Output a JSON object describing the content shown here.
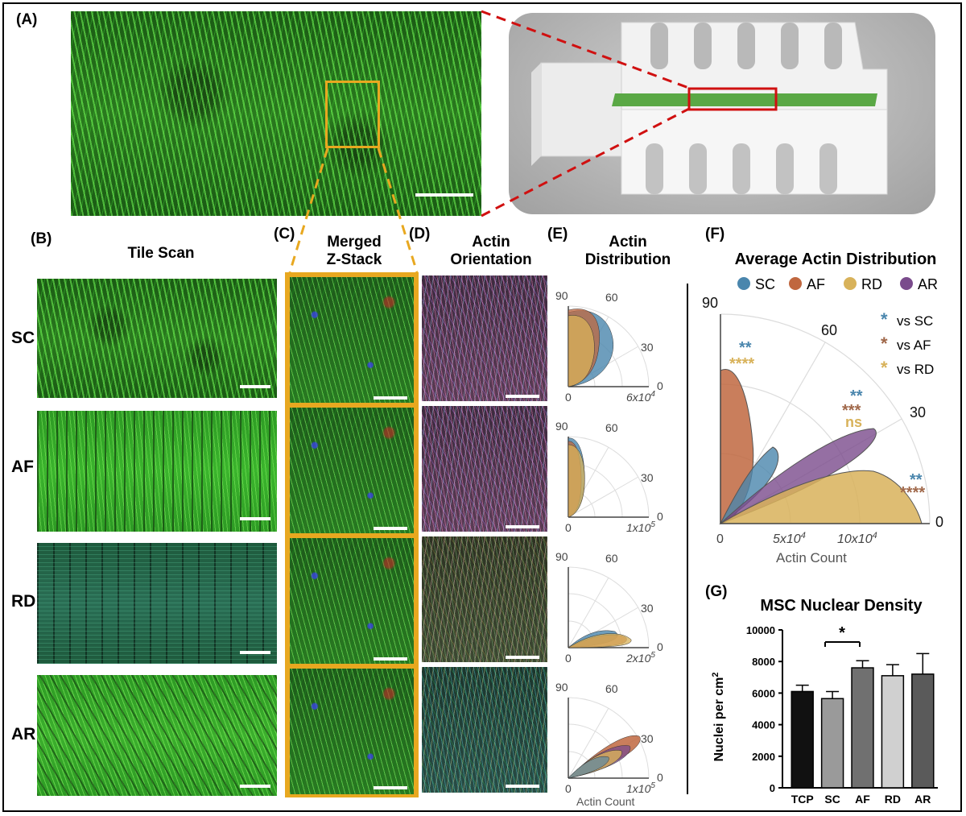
{
  "panels": {
    "a": "(A)",
    "b": "(B)",
    "c": "(C)",
    "d": "(D)",
    "e": "(E)",
    "f": "(F)",
    "g": "(G)"
  },
  "headings": {
    "tile_scan": "Tile Scan",
    "merged_1": "Merged",
    "merged_2": "Z-Stack",
    "orient_1": "Actin",
    "orient_2": "Orientation",
    "dist_1": "Actin",
    "dist_2": "Distribution"
  },
  "rows": [
    "SC",
    "AF",
    "RD",
    "AR"
  ],
  "colors": {
    "SC": "#4a86ad",
    "AF": "#c0673f",
    "RD": "#d8b25a",
    "AR": "#7a4b8c",
    "highlight_box": "#e8a820",
    "zoom_line": "#e8a820",
    "device_box": "#d01010"
  },
  "small_polars": [
    {
      "angle_labels": [
        "90",
        "60",
        "30",
        "0"
      ],
      "r_min": "0",
      "r_max": "6x10",
      "r_max_exp": "4"
    },
    {
      "angle_labels": [
        "90",
        "60",
        "30",
        "0"
      ],
      "r_min": "0",
      "r_max": "1x10",
      "r_max_exp": "5"
    },
    {
      "angle_labels": [
        "90",
        "60",
        "30",
        "0"
      ],
      "r_min": "0",
      "r_max": "2x10",
      "r_max_exp": "5"
    },
    {
      "angle_labels": [
        "90",
        "60",
        "30",
        "0"
      ],
      "r_min": "0",
      "r_max": "1x10",
      "r_max_exp": "5"
    }
  ],
  "small_polar_xlabel": "Actin Count",
  "avg_polar": {
    "title": "Average Actin Distribution",
    "legend": [
      "SC",
      "AF",
      "RD",
      "AR"
    ],
    "angle_labels": [
      "90",
      "60",
      "30",
      "0"
    ],
    "r_labels": [
      "0",
      "5x10",
      "10x10"
    ],
    "r_label_exp": "4",
    "xlabel": "Actin Count",
    "sig_legend": [
      {
        "symbol": "*",
        "text": "vs SC",
        "color": "#4a86ad"
      },
      {
        "symbol": "*",
        "text": "vs AF",
        "color": "#a0684a"
      },
      {
        "symbol": "*",
        "text": "vs RD",
        "color": "#d8b25a"
      }
    ],
    "annotations": {
      "af_sc": "**",
      "af_rd": "****",
      "ar_sc": "**",
      "ar_af": "***",
      "ar_rd": "ns",
      "rd_sc": "**",
      "rd_af": "****"
    }
  },
  "bar_chart": {
    "title": "MSC Nuclear Density",
    "ylabel": "Nuclei per cm",
    "ylabel_sup": "2",
    "significance": "*",
    "yticks": [
      "0",
      "2000",
      "4000",
      "6000",
      "8000",
      "10000"
    ]
  },
  "chart_data": {
    "type": "bar",
    "title": "MSC Nuclear Density",
    "categories": [
      "TCP",
      "SC",
      "AF",
      "RD",
      "AR"
    ],
    "values": [
      6100,
      5650,
      7600,
      7100,
      7200
    ],
    "errors": [
      400,
      450,
      450,
      700,
      1300
    ],
    "bar_colors": [
      "#111111",
      "#9a9a9a",
      "#707070",
      "#d0d0d0",
      "#5a5a5a"
    ],
    "xlabel": "",
    "ylabel": "Nuclei per cm²",
    "ylim": [
      0,
      10000
    ]
  }
}
